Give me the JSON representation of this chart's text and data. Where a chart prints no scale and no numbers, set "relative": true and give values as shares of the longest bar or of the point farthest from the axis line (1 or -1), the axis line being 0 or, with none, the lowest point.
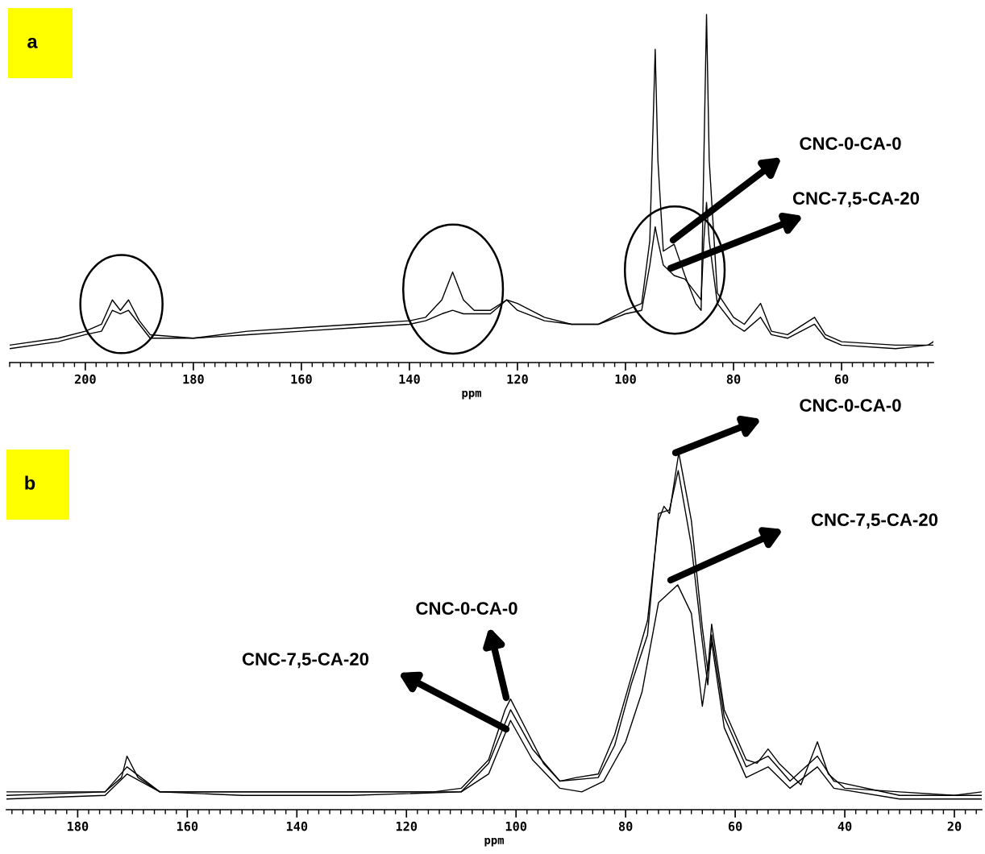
{
  "chart_data": [
    {
      "type": "line",
      "title": "a",
      "xlabel": "ppm",
      "relative": true,
      "xlim": [
        214,
        43
      ],
      "xticks": [
        200,
        180,
        160,
        140,
        120,
        100,
        80,
        60
      ],
      "grid": false,
      "legend": false,
      "tick_labels": "x",
      "series": [
        {
          "color": "#000000",
          "x": [
            214,
            205,
            200,
            197,
            195,
            193.5,
            192,
            190,
            188,
            180,
            170,
            160,
            150,
            140,
            137,
            134,
            132,
            130,
            128,
            125,
            122,
            120,
            115,
            110,
            105,
            100,
            97,
            95.5,
            94.5,
            94,
            93,
            91,
            89,
            87,
            86,
            85.5,
            85,
            84.5,
            83,
            80,
            78,
            75,
            73,
            70,
            65,
            63,
            60,
            50,
            44,
            43
          ],
          "values": [
            0.05,
            0.07,
            0.09,
            0.11,
            0.18,
            0.15,
            0.18,
            0.12,
            0.08,
            0.07,
            0.09,
            0.1,
            0.11,
            0.12,
            0.13,
            0.18,
            0.26,
            0.18,
            0.15,
            0.15,
            0.18,
            0.17,
            0.13,
            0.11,
            0.11,
            0.15,
            0.17,
            0.35,
            0.9,
            0.58,
            0.32,
            0.34,
            0.25,
            0.17,
            0.15,
            0.58,
            1.0,
            0.58,
            0.2,
            0.13,
            0.11,
            0.17,
            0.09,
            0.08,
            0.13,
            0.08,
            0.06,
            0.05,
            0.05,
            0.06
          ]
        },
        {
          "color": "#000000",
          "x": [
            214,
            205,
            200,
            197,
            195,
            193.5,
            192,
            190,
            188,
            180,
            170,
            160,
            150,
            140,
            137,
            134,
            132,
            130,
            128,
            125,
            122,
            120,
            115,
            110,
            105,
            100,
            97,
            95.5,
            94.5,
            94,
            93,
            91,
            89,
            87,
            86,
            85.5,
            85,
            84.5,
            83,
            80,
            78,
            75,
            73,
            70,
            65,
            63,
            60,
            50,
            44,
            43
          ],
          "values": [
            0.04,
            0.06,
            0.08,
            0.09,
            0.15,
            0.14,
            0.15,
            0.11,
            0.07,
            0.07,
            0.08,
            0.09,
            0.1,
            0.11,
            0.12,
            0.14,
            0.15,
            0.14,
            0.14,
            0.14,
            0.18,
            0.15,
            0.12,
            0.11,
            0.11,
            0.14,
            0.15,
            0.28,
            0.39,
            0.35,
            0.28,
            0.25,
            0.24,
            0.2,
            0.18,
            0.35,
            0.46,
            0.35,
            0.17,
            0.11,
            0.09,
            0.13,
            0.08,
            0.07,
            0.11,
            0.07,
            0.05,
            0.04,
            0.05,
            0.05
          ]
        }
      ],
      "annotations": [
        "CNC-0-CA-0",
        "CNC-7,5-CA-20"
      ]
    },
    {
      "type": "line",
      "title": "b",
      "xlabel": "ppm",
      "relative": true,
      "xlim": [
        193,
        15
      ],
      "xticks": [
        180,
        160,
        140,
        120,
        100,
        80,
        60,
        40,
        20
      ],
      "grid": false,
      "legend": false,
      "tick_labels": "x",
      "series": [
        {
          "color": "#000000",
          "x": [
            193,
            185,
            175,
            172,
            171,
            169,
            165,
            150,
            130,
            115,
            110,
            105,
            102,
            101,
            98,
            95,
            92,
            89,
            85,
            82,
            79,
            76,
            74,
            73,
            72,
            70.3,
            68,
            66,
            65,
            64.3,
            62,
            58,
            56,
            54,
            52,
            48,
            45,
            43,
            40,
            30,
            20,
            15
          ],
          "values": [
            0.05,
            0.05,
            0.05,
            0.09,
            0.15,
            0.09,
            0.05,
            0.05,
            0.05,
            0.05,
            0.06,
            0.14,
            0.28,
            0.31,
            0.22,
            0.13,
            0.08,
            0.09,
            0.1,
            0.21,
            0.37,
            0.53,
            0.81,
            0.85,
            0.83,
            1.0,
            0.81,
            0.51,
            0.39,
            0.52,
            0.28,
            0.14,
            0.13,
            0.17,
            0.13,
            0.07,
            0.19,
            0.1,
            0.06,
            0.05,
            0.04,
            0.05
          ]
        },
        {
          "color": "#000000",
          "x": [
            193,
            175,
            171,
            165,
            150,
            130,
            110,
            105,
            101,
            97,
            92,
            85,
            82,
            79,
            76,
            74,
            72,
            70.4,
            68,
            66,
            65,
            64.3,
            62,
            58,
            54,
            50,
            45,
            42,
            30,
            15
          ],
          "values": [
            0.04,
            0.05,
            0.12,
            0.05,
            0.05,
            0.05,
            0.05,
            0.13,
            0.28,
            0.17,
            0.08,
            0.09,
            0.18,
            0.35,
            0.49,
            0.83,
            0.84,
            0.95,
            0.74,
            0.47,
            0.35,
            0.49,
            0.26,
            0.12,
            0.15,
            0.08,
            0.15,
            0.08,
            0.04,
            0.04
          ]
        },
        {
          "color": "#000000",
          "x": [
            193,
            175,
            171,
            165,
            150,
            130,
            110,
            105,
            101,
            97,
            92,
            88,
            84,
            80,
            77,
            74,
            70.5,
            68,
            66,
            64.3,
            62,
            58,
            54,
            50,
            45,
            42,
            30,
            15
          ],
          "values": [
            0.03,
            0.04,
            0.1,
            0.05,
            0.04,
            0.04,
            0.05,
            0.1,
            0.25,
            0.14,
            0.06,
            0.05,
            0.08,
            0.19,
            0.33,
            0.58,
            0.63,
            0.55,
            0.29,
            0.47,
            0.23,
            0.09,
            0.12,
            0.06,
            0.12,
            0.06,
            0.03,
            0.03
          ]
        }
      ],
      "annotations": [
        "CNC-0-CA-0",
        "CNC-7,5-CA-20",
        "CNC-0-CA-0",
        "CNC-7,5-CA-20"
      ]
    }
  ]
}
